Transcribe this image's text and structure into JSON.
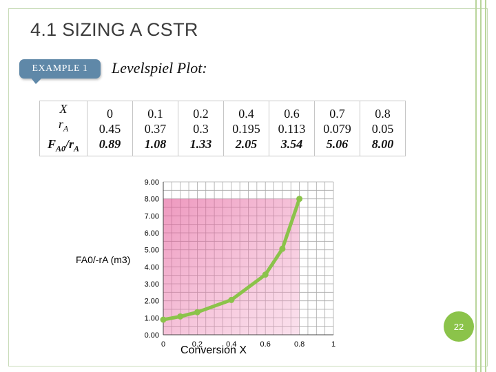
{
  "slide": {
    "title": "4.1 SIZING A CSTR",
    "badge": "EXAMPLE 1",
    "subtitle": "Levelspiel Plot:",
    "page_number": "22"
  },
  "table": {
    "row_labels": {
      "x": "X",
      "r": "r",
      "r_sub": "A",
      "f": "F",
      "f_sub": "A0",
      "f_mid": "/r",
      "f_sub2": "A"
    },
    "columns": [
      {
        "x": "0",
        "r": "0.45",
        "f": "0.89"
      },
      {
        "x": "0.1",
        "r": "0.37",
        "f": "1.08"
      },
      {
        "x": "0.2",
        "r": "0.3",
        "f": "1.33"
      },
      {
        "x": "0.4",
        "r": "0.195",
        "f": "2.05"
      },
      {
        "x": "0.6",
        "r": "0.113",
        "f": "3.54"
      },
      {
        "x": "0.7",
        "r": "0.079",
        "f": "5.06"
      },
      {
        "x": "0.8",
        "r": "0.05",
        "f": "8.00"
      }
    ]
  },
  "colors": {
    "curve": "#8bc34a",
    "shade": "#e0458a",
    "grid": "#a9a9a9",
    "badge": "#5f88a8"
  },
  "chart_data": {
    "type": "line",
    "title": "",
    "xlabel": "Conversion  X",
    "ylabel": "FA0/-rA (m3)",
    "x": [
      0,
      0.1,
      0.2,
      0.4,
      0.6,
      0.7,
      0.8
    ],
    "values": [
      0.89,
      1.08,
      1.33,
      2.05,
      3.54,
      5.06,
      8.0
    ],
    "xlim": [
      0,
      1
    ],
    "ylim": [
      0,
      9
    ],
    "x_ticks": [
      "0",
      "0.2",
      "0.4",
      "0.6",
      "0.8",
      "1"
    ],
    "y_ticks": [
      "0.00",
      "1.00",
      "2.00",
      "3.00",
      "4.00",
      "5.00",
      "6.00",
      "7.00",
      "8.00",
      "9.00"
    ],
    "shaded_region": {
      "x": [
        0,
        0.8
      ],
      "y": [
        0,
        8.0
      ]
    },
    "grid": true
  }
}
